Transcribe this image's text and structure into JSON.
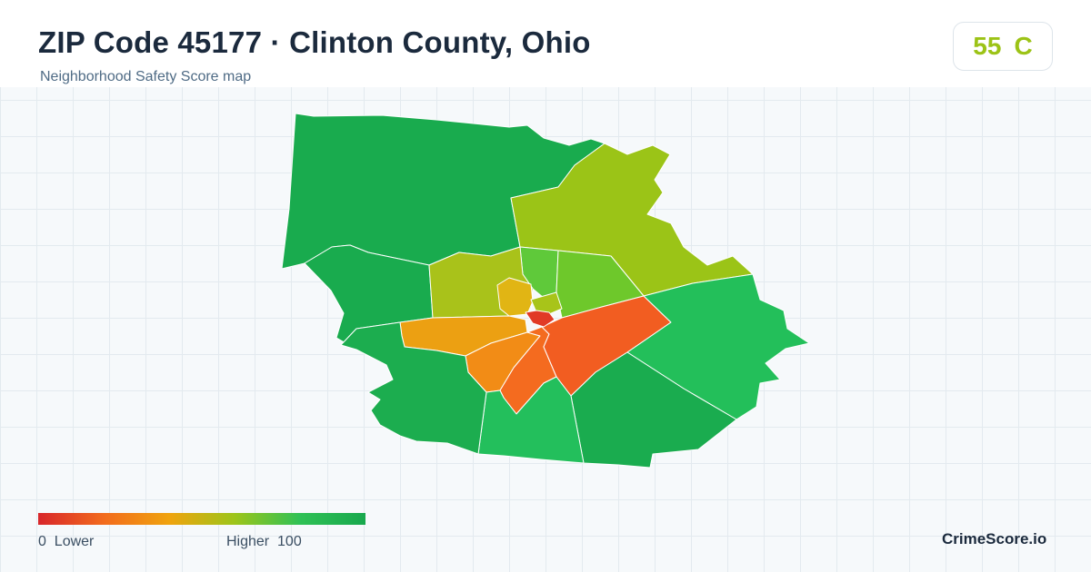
{
  "header": {
    "title": "ZIP Code 45177 · Clinton County, Ohio",
    "subtitle": "Neighborhood Safety Score map"
  },
  "score": {
    "value": "55",
    "grade": "C",
    "color": "#9cc316"
  },
  "legend": {
    "min_value": "0",
    "min_label": "Lower",
    "max_label": "Higher",
    "max_value": "100",
    "colors": [
      "#d8262a",
      "#f26b1d",
      "#f0a30e",
      "#9dc51a",
      "#2fc155",
      "#18a84d"
    ]
  },
  "brand": "CrimeScore.io",
  "map": {
    "areas": [
      {
        "id": "north-west",
        "color": "#19ab4e"
      },
      {
        "id": "west-center",
        "color": "#19ab4e"
      },
      {
        "id": "north-east",
        "color": "#9bc417"
      },
      {
        "id": "north-center",
        "color": "#5fc93a"
      },
      {
        "id": "north-center-east",
        "color": "#6ec82b"
      },
      {
        "id": "west-inner",
        "color": "#a9c21a"
      },
      {
        "id": "center-small",
        "color": "#e1b514"
      },
      {
        "id": "center-tiny",
        "color": "#a8c419"
      },
      {
        "id": "west-orange",
        "color": "#eca012"
      },
      {
        "id": "south-west-orange",
        "color": "#f28c16"
      },
      {
        "id": "south-orange",
        "color": "#f46b1f"
      },
      {
        "id": "east-red",
        "color": "#f25d21"
      },
      {
        "id": "downtown",
        "color": "#e13a26"
      },
      {
        "id": "east",
        "color": "#23bf5a"
      },
      {
        "id": "south-east",
        "color": "#1aac4f"
      },
      {
        "id": "south",
        "color": "#23bf5c"
      },
      {
        "id": "south-west",
        "color": "#1cad4f"
      }
    ]
  }
}
